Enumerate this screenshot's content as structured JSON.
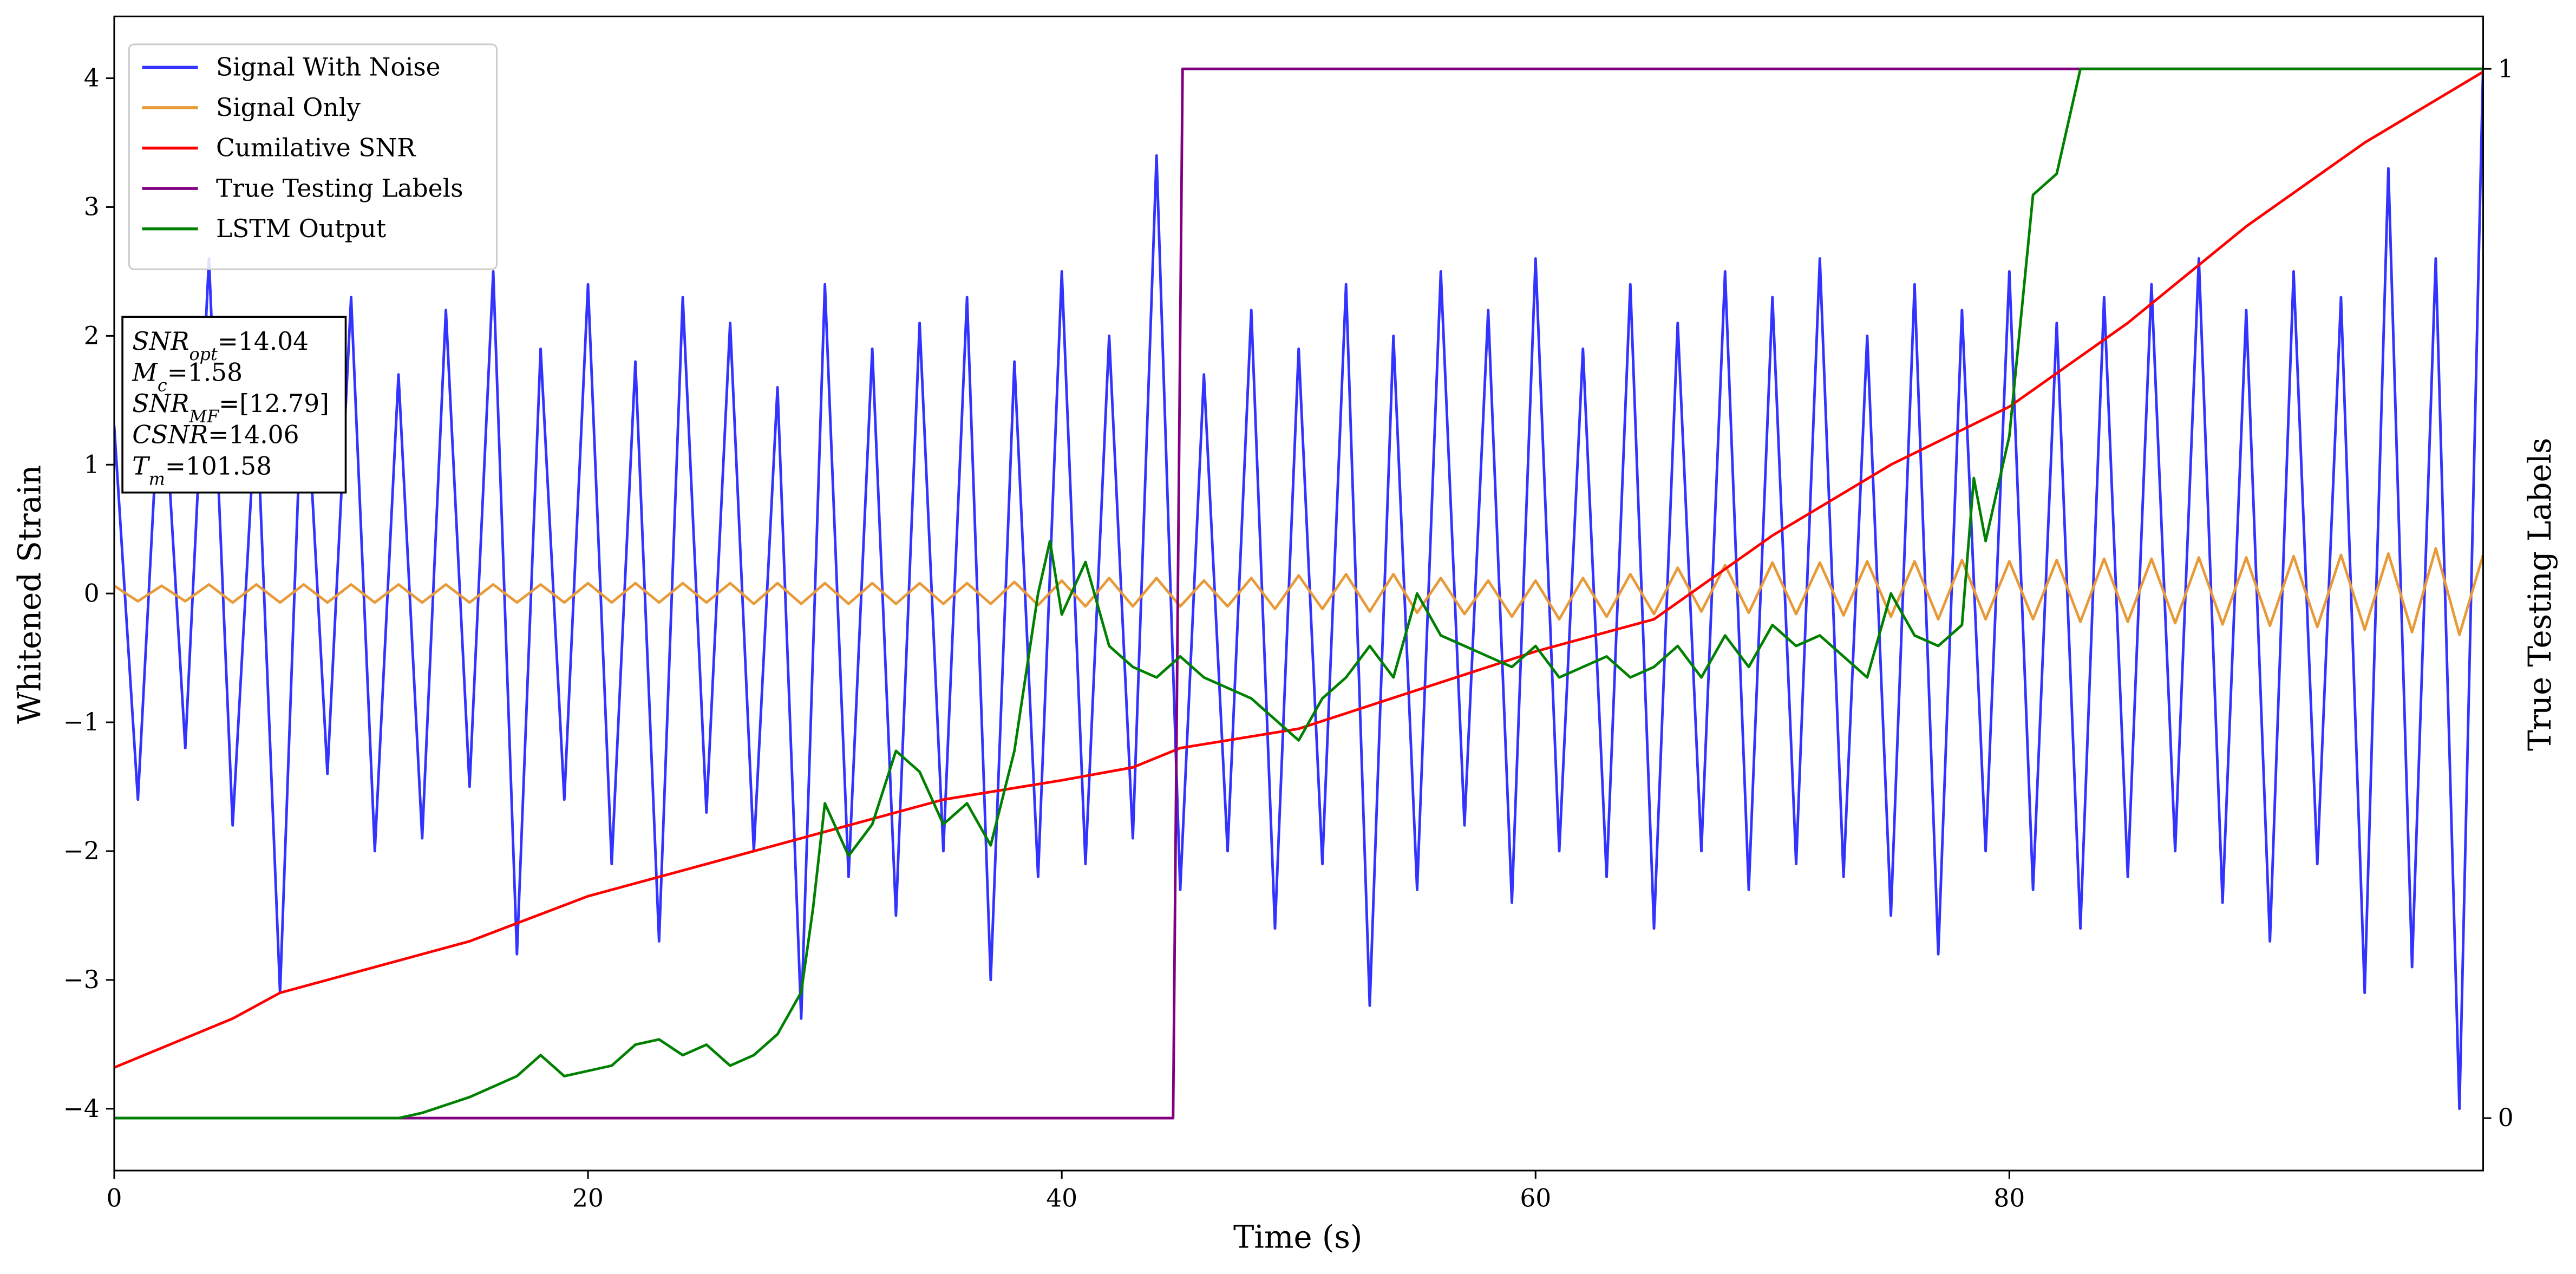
{
  "chart_data": {
    "type": "line",
    "xlabel": "Time (s)",
    "ylabel": "Whitened Strain",
    "y2label": "True Testing Labels",
    "xlim": [
      0,
      100
    ],
    "xticks": [
      0,
      20,
      40,
      60,
      80
    ],
    "ylim": [
      -4.48,
      4.48
    ],
    "yticks": [
      {
        "value": -4,
        "label": "−4"
      },
      {
        "value": -3,
        "label": "−3"
      },
      {
        "value": -2,
        "label": "−2"
      },
      {
        "value": -1,
        "label": "−1"
      },
      0,
      1,
      2,
      3,
      4
    ],
    "y2lim": [
      -0.05,
      1.05
    ],
    "y2ticks": [
      0,
      1
    ],
    "legend": "upper left",
    "grid": false,
    "annotation": [
      {
        "symbol": "SNR",
        "subscript": "opt",
        "rest": "=14.04"
      },
      {
        "symbol": "M",
        "subscript": "c",
        "rest": "=1.58"
      },
      {
        "symbol": "SNR",
        "subscript": "MF",
        "rest": "=[12.79]"
      },
      {
        "symbol": "CSNR",
        "rest": "=14.06"
      },
      {
        "symbol": "T",
        "subscript": "m",
        "rest": "=101.58"
      }
    ],
    "series": [
      {
        "name": "Signal With Noise",
        "color": "#3333ff",
        "axis": "y",
        "x": [
          0,
          1,
          2,
          3,
          4,
          5,
          6,
          7,
          8,
          9,
          10,
          11,
          12,
          13,
          14,
          15,
          16,
          17,
          18,
          19,
          20,
          21,
          22,
          23,
          24,
          25,
          26,
          27,
          28,
          29,
          30,
          31,
          32,
          33,
          34,
          35,
          36,
          37,
          38,
          39,
          40,
          41,
          42,
          43,
          44,
          45,
          46,
          47,
          48,
          49,
          50,
          51,
          52,
          53,
          54,
          55,
          56,
          57,
          58,
          59,
          60,
          61,
          62,
          63,
          64,
          65,
          66,
          67,
          68,
          69,
          70,
          71,
          72,
          73,
          74,
          75,
          76,
          77,
          78,
          79,
          80,
          81,
          82,
          83,
          84,
          85,
          86,
          87,
          88,
          89,
          90,
          91,
          92,
          93,
          94,
          95,
          96,
          97,
          98,
          99,
          100
        ],
        "values": [
          1.3,
          -1.6,
          1.9,
          -1.2,
          2.6,
          -1.8,
          1.5,
          -3.1,
          2.0,
          -1.4,
          2.3,
          -2.0,
          1.7,
          -1.9,
          2.2,
          -1.5,
          2.5,
          -2.8,
          1.9,
          -1.6,
          2.4,
          -2.1,
          1.8,
          -2.7,
          2.3,
          -1.7,
          2.1,
          -2.0,
          1.6,
          -3.3,
          2.4,
          -2.2,
          1.9,
          -2.5,
          2.1,
          -2.0,
          2.3,
          -3.0,
          1.8,
          -2.2,
          2.5,
          -2.1,
          2.0,
          -1.9,
          3.4,
          -2.3,
          1.7,
          -2.0,
          2.2,
          -2.6,
          1.9,
          -2.1,
          2.4,
          -3.2,
          2.0,
          -2.3,
          2.5,
          -1.8,
          2.2,
          -2.4,
          2.6,
          -2.0,
          1.9,
          -2.2,
          2.4,
          -2.6,
          2.1,
          -2.0,
          2.5,
          -2.3,
          2.3,
          -2.1,
          2.6,
          -2.2,
          2.0,
          -2.5,
          2.4,
          -2.8,
          2.2,
          -2.0,
          2.5,
          -2.3,
          2.1,
          -2.6,
          2.3,
          -2.2,
          2.4,
          -2.0,
          2.6,
          -2.4,
          2.2,
          -2.7,
          2.5,
          -2.1,
          2.3,
          -3.1,
          3.3,
          -2.9,
          2.6,
          -4.0,
          4.1
        ]
      },
      {
        "name": "Signal Only",
        "color": "#e89a38",
        "axis": "y",
        "x": [
          0,
          1,
          2,
          3,
          4,
          5,
          6,
          7,
          8,
          9,
          10,
          11,
          12,
          13,
          14,
          15,
          16,
          17,
          18,
          19,
          20,
          21,
          22,
          23,
          24,
          25,
          26,
          27,
          28,
          29,
          30,
          31,
          32,
          33,
          34,
          35,
          36,
          37,
          38,
          39,
          40,
          41,
          42,
          43,
          44,
          45,
          46,
          47,
          48,
          49,
          50,
          51,
          52,
          53,
          54,
          55,
          56,
          57,
          58,
          59,
          60,
          61,
          62,
          63,
          64,
          65,
          66,
          67,
          68,
          69,
          70,
          71,
          72,
          73,
          74,
          75,
          76,
          77,
          78,
          79,
          80,
          81,
          82,
          83,
          84,
          85,
          86,
          87,
          88,
          89,
          90,
          91,
          92,
          93,
          94,
          95,
          96,
          97,
          98,
          99,
          100
        ],
        "values": [
          0.06,
          -0.06,
          0.06,
          -0.06,
          0.07,
          -0.07,
          0.07,
          -0.07,
          0.07,
          -0.07,
          0.07,
          -0.07,
          0.07,
          -0.07,
          0.07,
          -0.07,
          0.07,
          -0.07,
          0.07,
          -0.07,
          0.08,
          -0.07,
          0.08,
          -0.07,
          0.08,
          -0.07,
          0.08,
          -0.08,
          0.08,
          -0.08,
          0.08,
          -0.08,
          0.08,
          -0.08,
          0.08,
          -0.08,
          0.08,
          -0.08,
          0.09,
          -0.09,
          0.1,
          -0.1,
          0.12,
          -0.1,
          0.12,
          -0.1,
          0.1,
          -0.1,
          0.12,
          -0.12,
          0.14,
          -0.12,
          0.15,
          -0.14,
          0.15,
          -0.15,
          0.12,
          -0.16,
          0.1,
          -0.18,
          0.1,
          -0.2,
          0.12,
          -0.18,
          0.15,
          -0.16,
          0.2,
          -0.14,
          0.22,
          -0.15,
          0.24,
          -0.16,
          0.24,
          -0.17,
          0.25,
          -0.18,
          0.25,
          -0.2,
          0.26,
          -0.2,
          0.25,
          -0.2,
          0.26,
          -0.22,
          0.27,
          -0.22,
          0.27,
          -0.23,
          0.28,
          -0.24,
          0.28,
          -0.25,
          0.29,
          -0.26,
          0.3,
          -0.28,
          0.31,
          -0.3,
          0.35,
          -0.32,
          0.3
        ]
      },
      {
        "name": "Cumilative SNR",
        "color": "#ff0000",
        "axis": "y",
        "x": [
          0,
          5,
          7,
          10,
          15,
          20,
          25,
          30,
          35,
          40,
          43,
          45,
          50,
          55,
          60,
          65,
          70,
          75,
          80,
          85,
          90,
          95,
          100
        ],
        "values": [
          -3.68,
          -3.3,
          -3.1,
          -2.95,
          -2.7,
          -2.35,
          -2.1,
          -1.85,
          -1.6,
          -1.45,
          -1.35,
          -1.2,
          -1.05,
          -0.75,
          -0.45,
          -0.2,
          0.45,
          1.0,
          1.45,
          2.1,
          2.85,
          3.5,
          4.05
        ]
      },
      {
        "name": "True Testing Labels",
        "color": "#800080",
        "axis": "y2",
        "x": [
          0,
          44.7,
          45.1,
          100
        ],
        "values": [
          0,
          0,
          1,
          1
        ]
      },
      {
        "name": "LSTM Output",
        "color": "#008000",
        "axis": "y2",
        "x": [
          0,
          12,
          13,
          15,
          16,
          17,
          18,
          19,
          21,
          22,
          23,
          24,
          25,
          26,
          27,
          28,
          29,
          29.5,
          30,
          31,
          32,
          33,
          34,
          35,
          36,
          37,
          38,
          39,
          39.5,
          40,
          41,
          42,
          43,
          44,
          45,
          46,
          47,
          48,
          49,
          50,
          51,
          52,
          53,
          54,
          55,
          56,
          57,
          58,
          59,
          60,
          61,
          62,
          63,
          64,
          65,
          66,
          67,
          68,
          69,
          70,
          71,
          72,
          73,
          74,
          75,
          76,
          77,
          78,
          78.5,
          79,
          80,
          81,
          82,
          83,
          84,
          100
        ],
        "values": [
          0,
          0,
          0.005,
          0.02,
          0.03,
          0.04,
          0.06,
          0.04,
          0.05,
          0.07,
          0.075,
          0.06,
          0.07,
          0.05,
          0.06,
          0.08,
          0.12,
          0.2,
          0.3,
          0.25,
          0.28,
          0.35,
          0.33,
          0.28,
          0.3,
          0.26,
          0.35,
          0.5,
          0.55,
          0.48,
          0.53,
          0.45,
          0.43,
          0.42,
          0.44,
          0.42,
          0.41,
          0.4,
          0.38,
          0.36,
          0.4,
          0.42,
          0.45,
          0.42,
          0.5,
          0.46,
          0.45,
          0.44,
          0.43,
          0.45,
          0.42,
          0.43,
          0.44,
          0.42,
          0.43,
          0.45,
          0.42,
          0.46,
          0.43,
          0.47,
          0.45,
          0.46,
          0.44,
          0.42,
          0.5,
          0.46,
          0.45,
          0.47,
          0.61,
          0.55,
          0.65,
          0.88,
          0.9,
          1.0,
          1.0,
          1.0
        ]
      }
    ]
  }
}
